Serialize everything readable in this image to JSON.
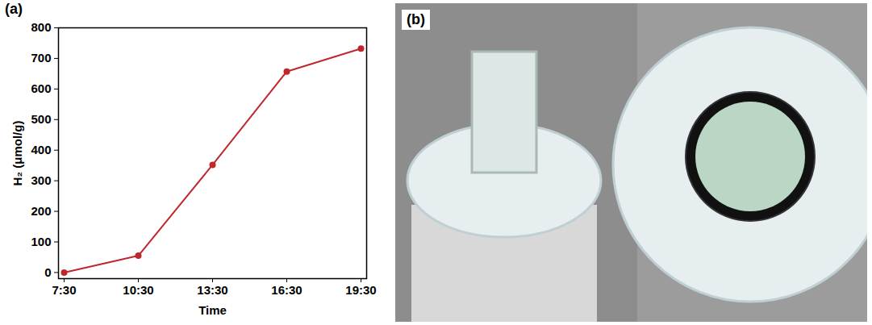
{
  "chart_data": {
    "type": "line",
    "panel_label": "(a)",
    "x_label": "Time",
    "y_label": "H₂ (μmol/g)",
    "categories": [
      "7:30",
      "10:30",
      "13:30",
      "16:30",
      "19:30"
    ],
    "values": [
      0,
      55,
      352,
      657,
      732
    ],
    "color": "#c0272d",
    "marker": "circle",
    "ylim": [
      -20,
      800
    ],
    "yticks": [
      0,
      100,
      200,
      300,
      400,
      500,
      600,
      700,
      800
    ],
    "grid": false
  },
  "photo_panel": {
    "label": "(b)"
  }
}
